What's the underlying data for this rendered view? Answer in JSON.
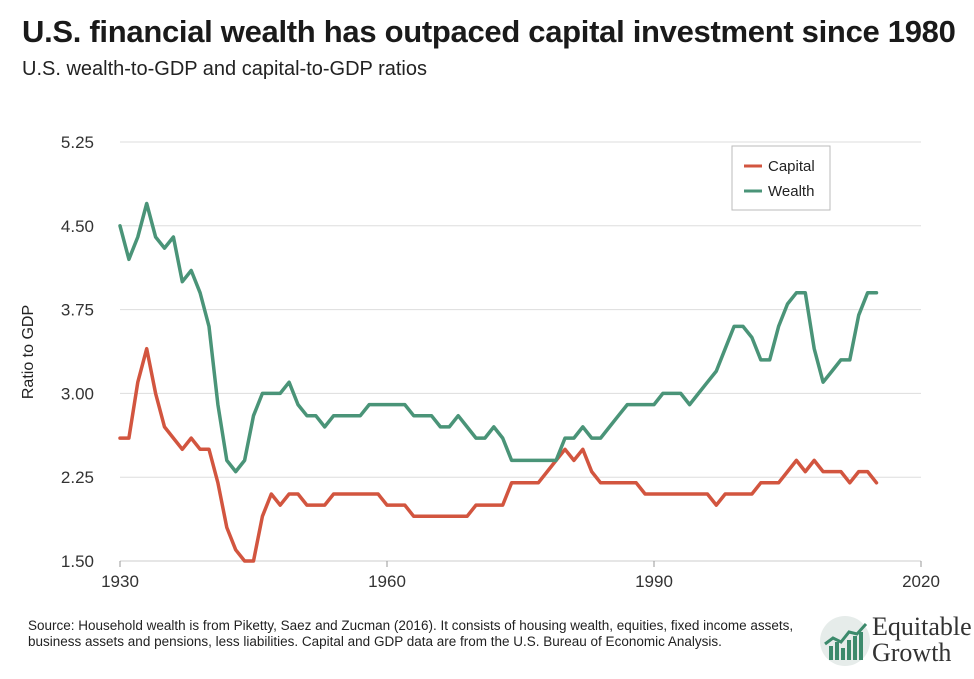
{
  "header": {
    "title": "U.S. financial wealth has outpaced capital investment since 1980",
    "subtitle": "U.S. wealth-to-GDP and capital-to-GDP ratios"
  },
  "source": "Source: Household wealth is from Piketty, Saez and Zucman (2016). It consists of housing wealth, equities, fixed income assets, business assets and pensions, less liabilities. Capital and GDP data are from the U.S. Bureau of Economic Analysis.",
  "logo": {
    "line1": "Equitable",
    "line2": "Growth"
  },
  "colors": {
    "capital": "#d2553f",
    "wealth": "#4a9478",
    "grid": "#dddddd",
    "axis": "#cccccc"
  },
  "chart_data": {
    "type": "line",
    "title": "",
    "xlabel": "",
    "ylabel": "Ratio to GDP",
    "xlim": [
      1930,
      2020
    ],
    "ylim": [
      1.5,
      5.25
    ],
    "x_ticks": [
      1930,
      1960,
      1990,
      2020
    ],
    "x_tick_labels": [
      "1930",
      "1960",
      "1990",
      "2020"
    ],
    "y_ticks": [
      1.5,
      2.25,
      3.0,
      3.75,
      4.5,
      5.25
    ],
    "y_tick_labels": [
      "1.50",
      "2.25",
      "3.00",
      "3.75",
      "4.50",
      "5.25"
    ],
    "grid": true,
    "legend": "top-right",
    "series": [
      {
        "name": "Capital",
        "color": "#d2553f",
        "x": [
          1930,
          1931,
          1932,
          1933,
          1934,
          1935,
          1936,
          1937,
          1938,
          1939,
          1940,
          1941,
          1942,
          1943,
          1944,
          1945,
          1946,
          1947,
          1948,
          1949,
          1950,
          1951,
          1952,
          1953,
          1954,
          1955,
          1956,
          1957,
          1958,
          1959,
          1960,
          1961,
          1962,
          1963,
          1964,
          1965,
          1966,
          1967,
          1968,
          1969,
          1970,
          1971,
          1972,
          1973,
          1974,
          1975,
          1976,
          1977,
          1978,
          1979,
          1980,
          1981,
          1982,
          1983,
          1984,
          1985,
          1986,
          1987,
          1988,
          1989,
          1990,
          1991,
          1992,
          1993,
          1994,
          1995,
          1996,
          1997,
          1998,
          1999,
          2000,
          2001,
          2002,
          2003,
          2004,
          2005,
          2006,
          2007,
          2008,
          2009,
          2010,
          2011,
          2012,
          2013,
          2014,
          2015
        ],
        "values": [
          2.6,
          2.6,
          3.1,
          3.4,
          3.0,
          2.7,
          2.6,
          2.5,
          2.6,
          2.5,
          2.5,
          2.2,
          1.8,
          1.6,
          1.5,
          1.5,
          1.9,
          2.1,
          2.0,
          2.1,
          2.1,
          2.0,
          2.0,
          2.0,
          2.1,
          2.1,
          2.1,
          2.1,
          2.1,
          2.1,
          2.0,
          2.0,
          2.0,
          1.9,
          1.9,
          1.9,
          1.9,
          1.9,
          1.9,
          1.9,
          2.0,
          2.0,
          2.0,
          2.0,
          2.2,
          2.2,
          2.2,
          2.2,
          2.3,
          2.4,
          2.5,
          2.4,
          2.5,
          2.3,
          2.2,
          2.2,
          2.2,
          2.2,
          2.2,
          2.1,
          2.1,
          2.1,
          2.1,
          2.1,
          2.1,
          2.1,
          2.1,
          2.0,
          2.1,
          2.1,
          2.1,
          2.1,
          2.2,
          2.2,
          2.2,
          2.3,
          2.4,
          2.3,
          2.4,
          2.3,
          2.3,
          2.3,
          2.2,
          2.3,
          2.3,
          2.2
        ]
      },
      {
        "name": "Wealth",
        "color": "#4a9478",
        "x": [
          1930,
          1931,
          1932,
          1933,
          1934,
          1935,
          1936,
          1937,
          1938,
          1939,
          1940,
          1941,
          1942,
          1943,
          1944,
          1945,
          1946,
          1947,
          1948,
          1949,
          1950,
          1951,
          1952,
          1953,
          1954,
          1955,
          1956,
          1957,
          1958,
          1959,
          1960,
          1961,
          1962,
          1963,
          1964,
          1965,
          1966,
          1967,
          1968,
          1969,
          1970,
          1971,
          1972,
          1973,
          1974,
          1975,
          1976,
          1977,
          1978,
          1979,
          1980,
          1981,
          1982,
          1983,
          1984,
          1985,
          1986,
          1987,
          1988,
          1989,
          1990,
          1991,
          1992,
          1993,
          1994,
          1995,
          1996,
          1997,
          1998,
          1999,
          2000,
          2001,
          2002,
          2003,
          2004,
          2005,
          2006,
          2007,
          2008,
          2009,
          2010,
          2011,
          2012,
          2013,
          2014,
          2015
        ],
        "values": [
          4.5,
          4.2,
          4.4,
          4.7,
          4.4,
          4.3,
          4.4,
          4.0,
          4.1,
          3.9,
          3.6,
          2.9,
          2.4,
          2.3,
          2.4,
          2.8,
          3.0,
          3.0,
          3.0,
          3.1,
          2.9,
          2.8,
          2.8,
          2.7,
          2.8,
          2.8,
          2.8,
          2.8,
          2.9,
          2.9,
          2.9,
          2.9,
          2.9,
          2.8,
          2.8,
          2.8,
          2.7,
          2.7,
          2.8,
          2.7,
          2.6,
          2.6,
          2.7,
          2.6,
          2.4,
          2.4,
          2.4,
          2.4,
          2.4,
          2.4,
          2.6,
          2.6,
          2.7,
          2.6,
          2.6,
          2.7,
          2.8,
          2.9,
          2.9,
          2.9,
          2.9,
          3.0,
          3.0,
          3.0,
          2.9,
          3.0,
          3.1,
          3.2,
          3.4,
          3.6,
          3.6,
          3.5,
          3.3,
          3.3,
          3.6,
          3.8,
          3.9,
          3.9,
          3.4,
          3.1,
          3.2,
          3.3,
          3.3,
          3.7,
          3.9,
          3.9
        ]
      }
    ]
  }
}
